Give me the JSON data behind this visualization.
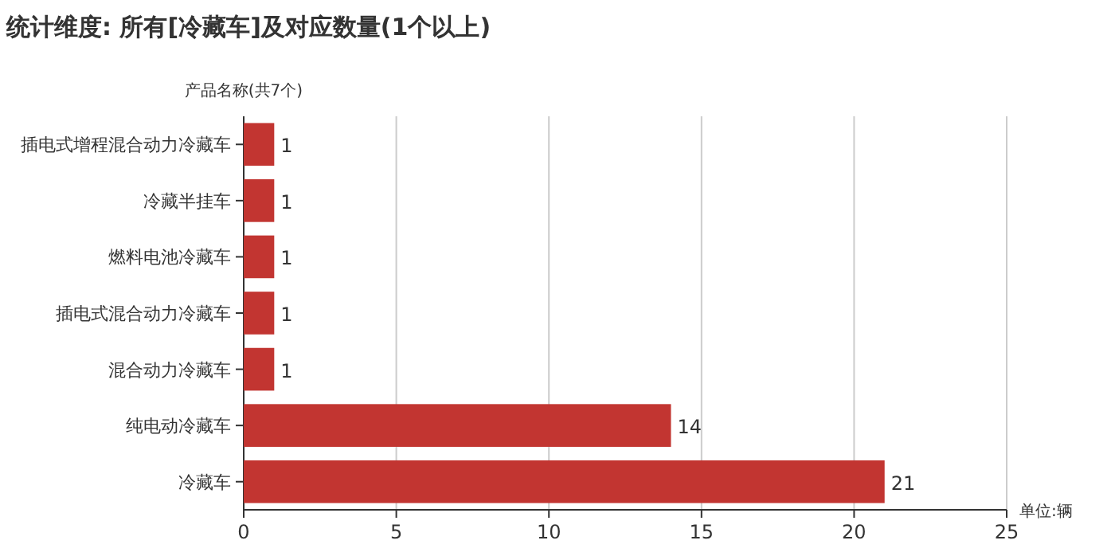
{
  "chart_data": {
    "type": "bar",
    "orientation": "horizontal",
    "title": "统计维度: 所有[冷藏车]及对应数量(1个以上)",
    "ylabel": "产品名称(共7个)",
    "xlabel": "单位:辆",
    "categories": [
      "插电式增程混合动力冷藏车",
      "冷藏半挂车",
      "燃料电池冷藏车",
      "插电式混合动力冷藏车",
      "混合动力冷藏车",
      "纯电动冷藏车",
      "冷藏车"
    ],
    "values": [
      1,
      1,
      1,
      1,
      1,
      14,
      21
    ],
    "color": "#c23531",
    "xlim": [
      0,
      25
    ],
    "xticks": [
      0,
      5,
      10,
      15,
      20,
      25
    ],
    "grid": "x",
    "data_labels": true
  }
}
